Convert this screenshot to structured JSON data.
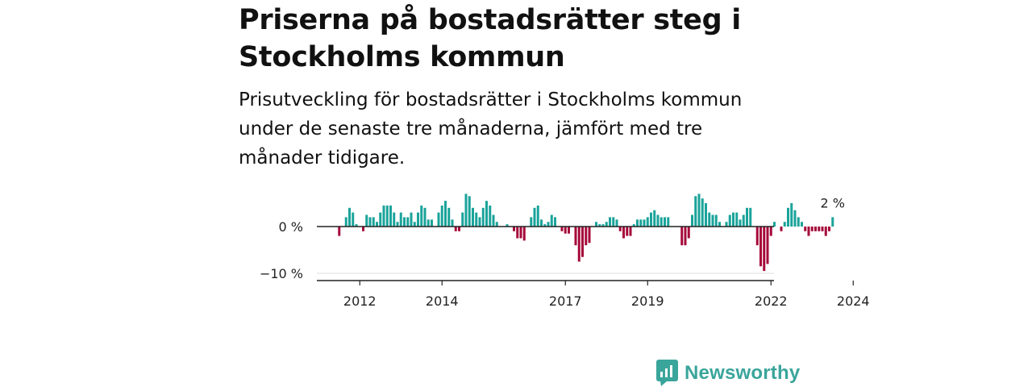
{
  "title": "Priserna på bostadsrätter steg i Stockholms kommun",
  "subtitle": "Prisutveckling för bostadsrätter i Stockholms kommun under de senaste tre månaderna, jämfört med tre månader tidigare.",
  "brand": "Newsworthy",
  "colors": {
    "positive": "#1aa39a",
    "negative": "#a5093a",
    "axis": "#222222",
    "grid": "#dddddd",
    "brand": "#3aa59b"
  },
  "chart_data": {
    "type": "bar",
    "ylabel": "",
    "xlabel": "",
    "ylim": [
      -12,
      7
    ],
    "yticks": [
      {
        "value": 0,
        "label": "0 %"
      },
      {
        "value": -10,
        "label": "−10 %"
      }
    ],
    "xticks": [
      {
        "value": 2012,
        "label": "2012"
      },
      {
        "value": 2014,
        "label": "2014"
      },
      {
        "value": 2017,
        "label": "2017"
      },
      {
        "value": 2019,
        "label": "2019"
      },
      {
        "value": 2022,
        "label": "2022"
      },
      {
        "value": 2024,
        "label": "2024"
      }
    ],
    "last_value_label": "2 %",
    "start": "2011-06",
    "frequency": "monthly",
    "values": [
      0.0,
      -2.0,
      0.0,
      2.0,
      4.0,
      3.0,
      0.5,
      0.0,
      -1.0,
      2.5,
      2.0,
      2.0,
      1.0,
      3.0,
      4.5,
      4.5,
      4.5,
      3.0,
      1.0,
      3.0,
      2.0,
      2.0,
      3.0,
      1.0,
      3.0,
      4.5,
      4.0,
      1.5,
      1.5,
      0.0,
      3.0,
      4.5,
      5.5,
      4.0,
      1.5,
      -1.0,
      -1.0,
      3.0,
      7.0,
      6.5,
      4.0,
      3.0,
      2.0,
      4.0,
      5.5,
      4.5,
      2.5,
      1.0,
      0.0,
      0.0,
      0.5,
      0.0,
      -1.0,
      -2.5,
      -2.5,
      -3.0,
      0.0,
      2.0,
      4.0,
      4.5,
      1.5,
      0.5,
      1.0,
      2.5,
      2.0,
      0.0,
      -1.0,
      -1.5,
      -1.5,
      0.0,
      -4.0,
      -7.5,
      -6.5,
      -4.0,
      -3.5,
      0.0,
      1.0,
      0.5,
      0.5,
      1.0,
      2.0,
      2.0,
      1.5,
      -1.0,
      -2.5,
      -2.0,
      -2.0,
      0.5,
      1.5,
      1.5,
      1.5,
      2.0,
      3.0,
      3.5,
      2.5,
      2.0,
      2.0,
      2.0,
      0.0,
      0.0,
      0.0,
      -4.0,
      -4.0,
      -2.5,
      2.5,
      6.5,
      7.0,
      6.0,
      5.0,
      3.0,
      2.5,
      2.5,
      1.0,
      0.0,
      1.0,
      2.5,
      3.0,
      3.0,
      1.5,
      2.5,
      4.0,
      4.0,
      0.0,
      -4.0,
      -8.5,
      -9.5,
      -8.0,
      -2.0,
      1.0,
      0.0,
      -1.0,
      1.0,
      4.0,
      5.0,
      3.5,
      2.0,
      1.0,
      -1.0,
      -2.0,
      -1.0,
      -1.0,
      -1.0,
      -1.0,
      -2.0,
      -1.0,
      2.0
    ]
  }
}
